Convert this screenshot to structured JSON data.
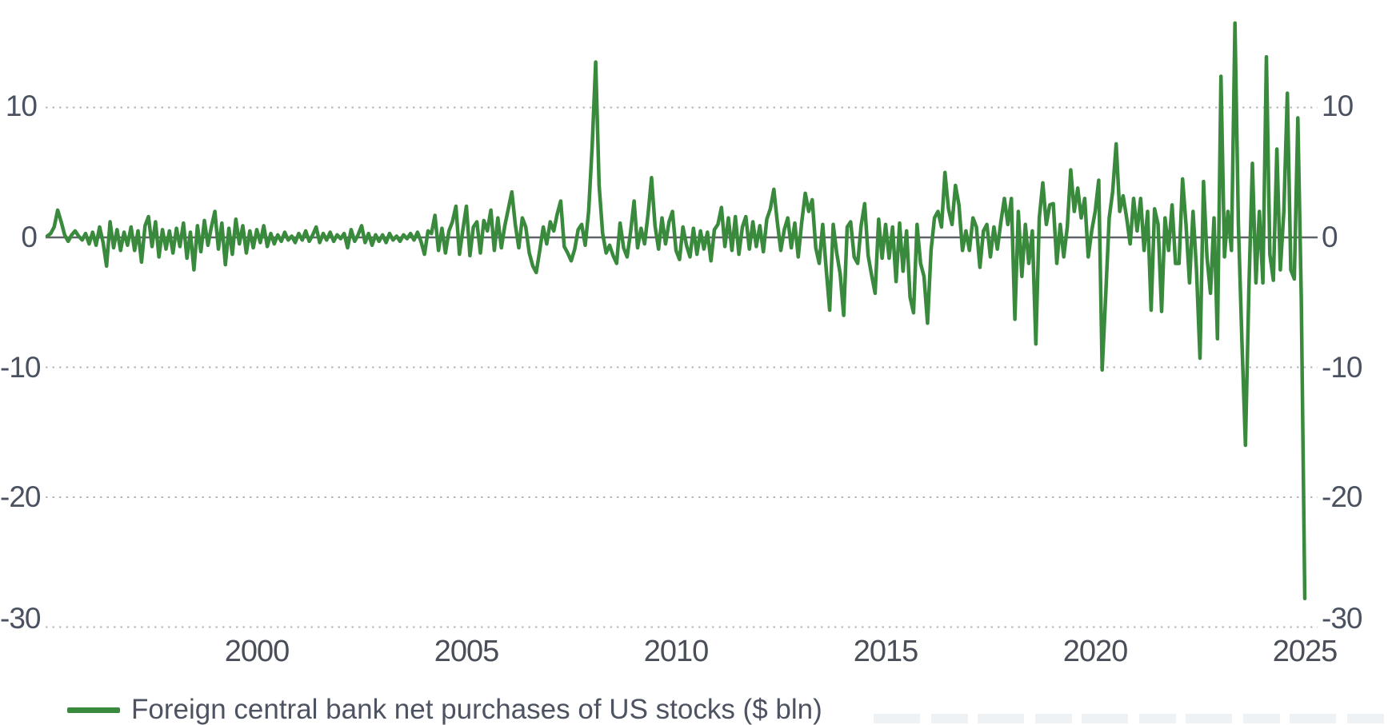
{
  "chart_data": {
    "type": "line",
    "title": "",
    "xlabel": "",
    "ylabel": "",
    "xlim": [
      1995.0,
      2025.3
    ],
    "ylim": [
      -30,
      18.3
    ],
    "x_ticks": [
      2000,
      2005,
      2010,
      2015,
      2020,
      2025
    ],
    "y_ticks": [
      10,
      0,
      -10,
      -20,
      -30
    ],
    "grid": "horizontal dotted, solid zero line",
    "legend_position": "bottom-left",
    "series": [
      {
        "name": "Foreign central bank net purchases of US stocks ($ bln)",
        "color": "#398a3c",
        "frequency": "monthly",
        "x_start": 1995.0,
        "x_step_years": 0.0833333,
        "values": [
          0.1,
          0.3,
          0.8,
          2.1,
          1.2,
          0.2,
          -0.3,
          0.2,
          0.5,
          0.1,
          -0.2,
          0.3,
          -0.5,
          0.4,
          -0.6,
          0.8,
          -0.4,
          -2.2,
          1.2,
          -0.8,
          0.6,
          -1.0,
          0.4,
          -0.6,
          0.8,
          -1.0,
          0.5,
          -1.9,
          0.9,
          1.6,
          -0.7,
          1.2,
          -1.5,
          0.6,
          -0.9,
          0.5,
          -1.2,
          0.7,
          -0.7,
          1.1,
          -1.6,
          0.4,
          -2.5,
          0.9,
          -1.1,
          1.3,
          -0.6,
          0.8,
          2.0,
          -0.9,
          1.1,
          -2.1,
          0.7,
          -1.3,
          1.4,
          -0.5,
          0.9,
          -1.2,
          0.5,
          -0.8,
          0.6,
          -0.4,
          0.9,
          -0.7,
          0.3,
          -0.5,
          0.2,
          -0.3,
          0.4,
          -0.2,
          0.1,
          -0.4,
          0.3,
          -0.2,
          0.5,
          -0.3,
          0.2,
          0.8,
          -0.4,
          0.3,
          -0.2,
          0.4,
          -0.3,
          0.2,
          -0.1,
          0.3,
          -0.8,
          0.6,
          -0.3,
          0.2,
          0.9,
          -0.4,
          0.3,
          -0.6,
          0.2,
          -0.3,
          0.2,
          -0.4,
          0.3,
          -0.2,
          0.1,
          -0.3,
          0.2,
          -0.1,
          0.3,
          -0.2,
          0.4,
          -0.3,
          -1.3,
          0.5,
          0.3,
          1.7,
          -1.0,
          0.7,
          -1.2,
          0.5,
          1.2,
          2.4,
          -1.3,
          0.6,
          2.4,
          -1.4,
          0.8,
          1.2,
          -1.2,
          1.3,
          0.5,
          2.1,
          -1.0,
          1.5,
          -0.8,
          0.9,
          2.2,
          3.5,
          1.0,
          -0.8,
          1.5,
          0.8,
          -1.2,
          -2.2,
          -2.7,
          -1.0,
          0.8,
          -0.5,
          1.2,
          0.5,
          1.8,
          2.8,
          -0.7,
          -1.2,
          -1.8,
          -0.9,
          0.6,
          1.0,
          -0.6,
          2.0,
          7.0,
          13.5,
          4.0,
          0.3,
          -1.2,
          -0.6,
          -1.4,
          -2.0,
          1.1,
          -0.8,
          -1.5,
          0.4,
          2.8,
          -0.8,
          0.7,
          -0.5,
          1.8,
          4.6,
          0.9,
          -0.9,
          1.5,
          -0.5,
          1.2,
          2.0,
          -1.0,
          -1.7,
          0.8,
          -0.6,
          -1.5,
          0.7,
          -1.3,
          0.5,
          -0.9,
          0.4,
          -1.8,
          0.6,
          1.0,
          2.3,
          -0.7,
          1.5,
          -1.0,
          1.6,
          -1.3,
          0.8,
          1.6,
          -0.9,
          1.2,
          -0.7,
          0.9,
          -1.1,
          1.4,
          2.2,
          3.7,
          1.2,
          -1.0,
          0.6,
          1.5,
          -0.8,
          1.1,
          -1.5,
          1.2,
          3.4,
          2.0,
          2.9,
          -0.8,
          -2.0,
          1.0,
          -2.5,
          -5.6,
          1.0,
          -1.2,
          -2.8,
          -6.0,
          0.8,
          1.2,
          -1.5,
          -2.0,
          0.9,
          2.6,
          -1.4,
          -2.9,
          -4.3,
          1.4,
          -1.6,
          1.0,
          -1.6,
          0.8,
          -3.4,
          1.1,
          -2.6,
          0.5,
          -4.6,
          -5.8,
          1.0,
          -2.0,
          -3.0,
          -6.6,
          -1.0,
          1.5,
          2.0,
          0.8,
          5.0,
          2.2,
          1.0,
          4.0,
          2.5,
          -1.0,
          0.5,
          -1.0,
          1.5,
          0.8,
          -2.3,
          0.5,
          1.0,
          -1.5,
          0.8,
          -0.9,
          1.2,
          3.0,
          1.0,
          3.0,
          -6.3,
          2.0,
          -3.0,
          1.0,
          -2.0,
          0.5,
          -8.2,
          1.5,
          4.2,
          1.0,
          2.5,
          2.6,
          -2.0,
          1.0,
          -1.5,
          0.8,
          5.2,
          2.0,
          3.8,
          1.5,
          3.0,
          -1.5,
          0.5,
          2.0,
          4.4,
          -10.2,
          -4.5,
          1.5,
          3.5,
          7.2,
          2.0,
          3.2,
          1.5,
          -0.5,
          3.0,
          0.5,
          3.0,
          -1.0,
          2.0,
          -5.6,
          2.2,
          1.0,
          -5.7,
          1.5,
          -1.0,
          2.5,
          -2.0,
          -2.0,
          4.5,
          1.0,
          -3.5,
          2.0,
          -2.5,
          -9.3,
          4.3,
          -1.5,
          -4.3,
          1.5,
          -7.8,
          12.4,
          -1.5,
          2.0,
          -1.0,
          16.5,
          1.0,
          -8.0,
          -16.0,
          -4.0,
          5.7,
          -3.5,
          2.0,
          -3.5,
          13.9,
          -1.3,
          -3.3,
          6.8,
          -2.5,
          2.0,
          11.1,
          -2.5,
          -3.2,
          9.2,
          -4.7,
          -27.8
        ]
      }
    ],
    "colors": {
      "line": "#398a3c",
      "gridline": "#b3b7bb",
      "zero_line": "#5f6368",
      "tick_label": "#4a5160"
    }
  },
  "axes": {
    "left_labels": [
      "10",
      "0",
      "-10",
      "-20",
      "-30"
    ],
    "right_labels": [
      "10",
      "0",
      "-10",
      "-20",
      "-30"
    ],
    "x_labels": [
      "2000",
      "2005",
      "2010",
      "2015",
      "2020",
      "2025"
    ]
  },
  "legend": {
    "label": "Foreign central bank net purchases of US stocks ($ bln)",
    "swatch_color": "#398a3c"
  }
}
